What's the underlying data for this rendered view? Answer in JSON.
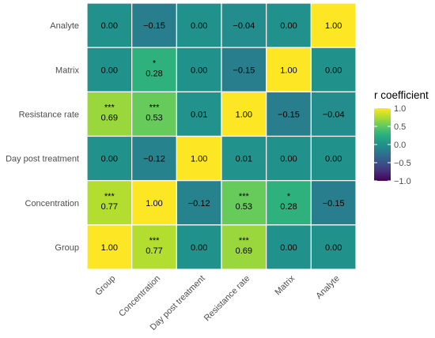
{
  "chart_data": {
    "type": "heatmap",
    "rows": [
      "Analyte",
      "Matrix",
      "Resistance rate",
      "Day post treatment",
      "Concentration",
      "Group"
    ],
    "columns": [
      "Group",
      "Concentration",
      "Day post treatment",
      "Resistance rate",
      "Matrix",
      "Analyte"
    ],
    "values": [
      [
        0.0,
        -0.15,
        0.0,
        -0.04,
        0.0,
        1.0
      ],
      [
        0.0,
        0.28,
        0.0,
        -0.15,
        1.0,
        0.0
      ],
      [
        0.69,
        0.53,
        0.01,
        1.0,
        -0.15,
        -0.04
      ],
      [
        0.0,
        -0.12,
        1.0,
        0.01,
        0.0,
        0.0
      ],
      [
        0.77,
        1.0,
        -0.12,
        0.53,
        0.28,
        -0.15
      ],
      [
        1.0,
        0.77,
        0.0,
        0.69,
        0.0,
        0.0
      ]
    ],
    "labels": [
      [
        "0.00",
        "−0.15",
        "0.00",
        "−0.04",
        "0.00",
        "1.00"
      ],
      [
        "0.00",
        "0.28",
        "0.00",
        "−0.15",
        "1.00",
        "0.00"
      ],
      [
        "0.69",
        "0.53",
        "0.01",
        "1.00",
        "−0.15",
        "−0.04"
      ],
      [
        "0.00",
        "−0.12",
        "1.00",
        "0.01",
        "0.00",
        "0.00"
      ],
      [
        "0.77",
        "1.00",
        "−0.12",
        "0.53",
        "0.28",
        "−0.15"
      ],
      [
        "1.00",
        "0.77",
        "0.00",
        "0.69",
        "0.00",
        "0.00"
      ]
    ],
    "significance": [
      [
        "",
        "",
        "",
        "",
        "",
        ""
      ],
      [
        "",
        "*",
        "",
        "",
        "",
        ""
      ],
      [
        "***",
        "***",
        "",
        "",
        "",
        ""
      ],
      [
        "",
        "",
        "",
        "",
        "",
        ""
      ],
      [
        "***",
        "",
        "",
        "***",
        "*",
        ""
      ],
      [
        "",
        "***",
        "",
        "***",
        "",
        ""
      ]
    ],
    "colorscale": "viridis",
    "range": [
      -1,
      1
    ],
    "legend": {
      "title": "r coefficient",
      "ticks": [
        "1.0",
        "0.5",
        "0.0",
        "−0.5",
        "−1.0"
      ],
      "tick_values": [
        1.0,
        0.5,
        0.0,
        -0.5,
        -1.0
      ],
      "position": "right"
    },
    "grid": false
  }
}
